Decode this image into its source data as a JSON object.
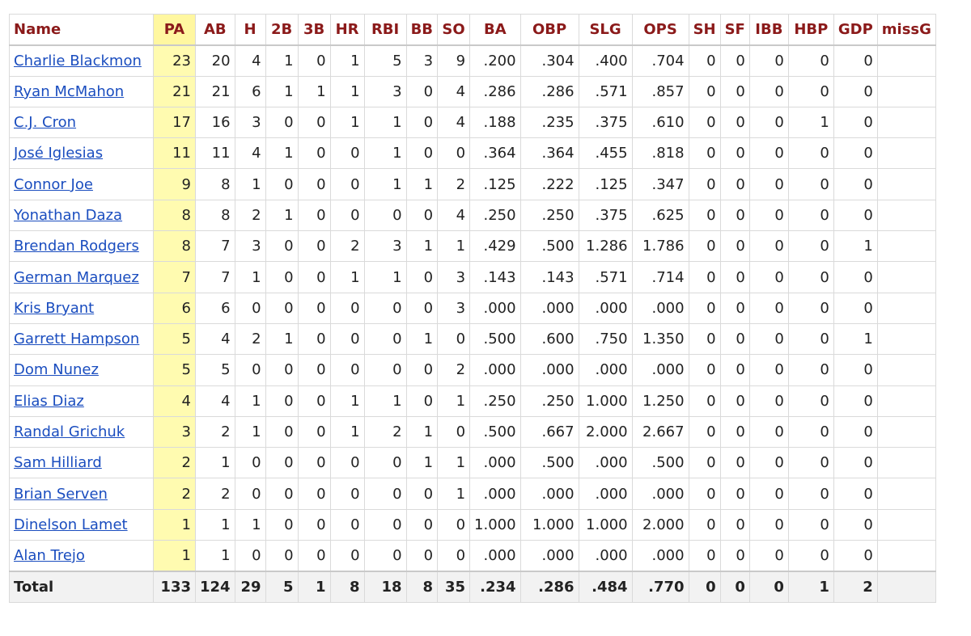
{
  "columns": [
    "Name",
    "PA",
    "AB",
    "H",
    "2B",
    "3B",
    "HR",
    "RBI",
    "BB",
    "SO",
    "BA",
    "OBP",
    "SLG",
    "OPS",
    "SH",
    "SF",
    "IBB",
    "HBP",
    "GDP",
    "missG"
  ],
  "rows": [
    {
      "name": "Charlie Blackmon",
      "stats": [
        "23",
        "20",
        "4",
        "1",
        "0",
        "1",
        "5",
        "3",
        "9",
        ".200",
        ".304",
        ".400",
        ".704",
        "0",
        "0",
        "0",
        "0",
        "0",
        ""
      ]
    },
    {
      "name": "Ryan McMahon",
      "stats": [
        "21",
        "21",
        "6",
        "1",
        "1",
        "1",
        "3",
        "0",
        "4",
        ".286",
        ".286",
        ".571",
        ".857",
        "0",
        "0",
        "0",
        "0",
        "0",
        ""
      ]
    },
    {
      "name": "C.J. Cron",
      "stats": [
        "17",
        "16",
        "3",
        "0",
        "0",
        "1",
        "1",
        "0",
        "4",
        ".188",
        ".235",
        ".375",
        ".610",
        "0",
        "0",
        "0",
        "1",
        "0",
        ""
      ]
    },
    {
      "name": "José Iglesias",
      "stats": [
        "11",
        "11",
        "4",
        "1",
        "0",
        "0",
        "1",
        "0",
        "0",
        ".364",
        ".364",
        ".455",
        ".818",
        "0",
        "0",
        "0",
        "0",
        "0",
        ""
      ]
    },
    {
      "name": "Connor Joe",
      "stats": [
        "9",
        "8",
        "1",
        "0",
        "0",
        "0",
        "1",
        "1",
        "2",
        ".125",
        ".222",
        ".125",
        ".347",
        "0",
        "0",
        "0",
        "0",
        "0",
        ""
      ]
    },
    {
      "name": "Yonathan Daza",
      "stats": [
        "8",
        "8",
        "2",
        "1",
        "0",
        "0",
        "0",
        "0",
        "4",
        ".250",
        ".250",
        ".375",
        ".625",
        "0",
        "0",
        "0",
        "0",
        "0",
        ""
      ]
    },
    {
      "name": "Brendan Rodgers",
      "stats": [
        "8",
        "7",
        "3",
        "0",
        "0",
        "2",
        "3",
        "1",
        "1",
        ".429",
        ".500",
        "1.286",
        "1.786",
        "0",
        "0",
        "0",
        "0",
        "1",
        ""
      ]
    },
    {
      "name": "German Marquez",
      "stats": [
        "7",
        "7",
        "1",
        "0",
        "0",
        "1",
        "1",
        "0",
        "3",
        ".143",
        ".143",
        ".571",
        ".714",
        "0",
        "0",
        "0",
        "0",
        "0",
        ""
      ]
    },
    {
      "name": "Kris Bryant",
      "stats": [
        "6",
        "6",
        "0",
        "0",
        "0",
        "0",
        "0",
        "0",
        "3",
        ".000",
        ".000",
        ".000",
        ".000",
        "0",
        "0",
        "0",
        "0",
        "0",
        ""
      ]
    },
    {
      "name": "Garrett Hampson",
      "stats": [
        "5",
        "4",
        "2",
        "1",
        "0",
        "0",
        "0",
        "1",
        "0",
        ".500",
        ".600",
        ".750",
        "1.350",
        "0",
        "0",
        "0",
        "0",
        "1",
        ""
      ]
    },
    {
      "name": "Dom Nunez",
      "stats": [
        "5",
        "5",
        "0",
        "0",
        "0",
        "0",
        "0",
        "0",
        "2",
        ".000",
        ".000",
        ".000",
        ".000",
        "0",
        "0",
        "0",
        "0",
        "0",
        ""
      ]
    },
    {
      "name": "Elias Diaz",
      "stats": [
        "4",
        "4",
        "1",
        "0",
        "0",
        "1",
        "1",
        "0",
        "1",
        ".250",
        ".250",
        "1.000",
        "1.250",
        "0",
        "0",
        "0",
        "0",
        "0",
        ""
      ]
    },
    {
      "name": "Randal Grichuk",
      "stats": [
        "3",
        "2",
        "1",
        "0",
        "0",
        "1",
        "2",
        "1",
        "0",
        ".500",
        ".667",
        "2.000",
        "2.667",
        "0",
        "0",
        "0",
        "0",
        "0",
        ""
      ]
    },
    {
      "name": "Sam Hilliard",
      "stats": [
        "2",
        "1",
        "0",
        "0",
        "0",
        "0",
        "0",
        "1",
        "1",
        ".000",
        ".500",
        ".000",
        ".500",
        "0",
        "0",
        "0",
        "0",
        "0",
        ""
      ]
    },
    {
      "name": "Brian Serven",
      "stats": [
        "2",
        "2",
        "0",
        "0",
        "0",
        "0",
        "0",
        "0",
        "1",
        ".000",
        ".000",
        ".000",
        ".000",
        "0",
        "0",
        "0",
        "0",
        "0",
        ""
      ]
    },
    {
      "name": "Dinelson Lamet",
      "stats": [
        "1",
        "1",
        "1",
        "0",
        "0",
        "0",
        "0",
        "0",
        "0",
        "1.000",
        "1.000",
        "1.000",
        "2.000",
        "0",
        "0",
        "0",
        "0",
        "0",
        ""
      ]
    },
    {
      "name": "Alan Trejo",
      "stats": [
        "1",
        "1",
        "0",
        "0",
        "0",
        "0",
        "0",
        "0",
        "0",
        ".000",
        ".000",
        ".000",
        ".000",
        "0",
        "0",
        "0",
        "0",
        "0",
        ""
      ]
    }
  ],
  "total": {
    "label": "Total",
    "stats": [
      "133",
      "124",
      "29",
      "5",
      "1",
      "8",
      "18",
      "8",
      "35",
      ".234",
      ".286",
      ".484",
      ".770",
      "0",
      "0",
      "0",
      "1",
      "2",
      ""
    ]
  },
  "colors": {
    "header_text": "#8b1a1a",
    "link": "#1a4dbf",
    "pa_highlight": "#fffbb0",
    "total_bg": "#f2f2f2"
  }
}
